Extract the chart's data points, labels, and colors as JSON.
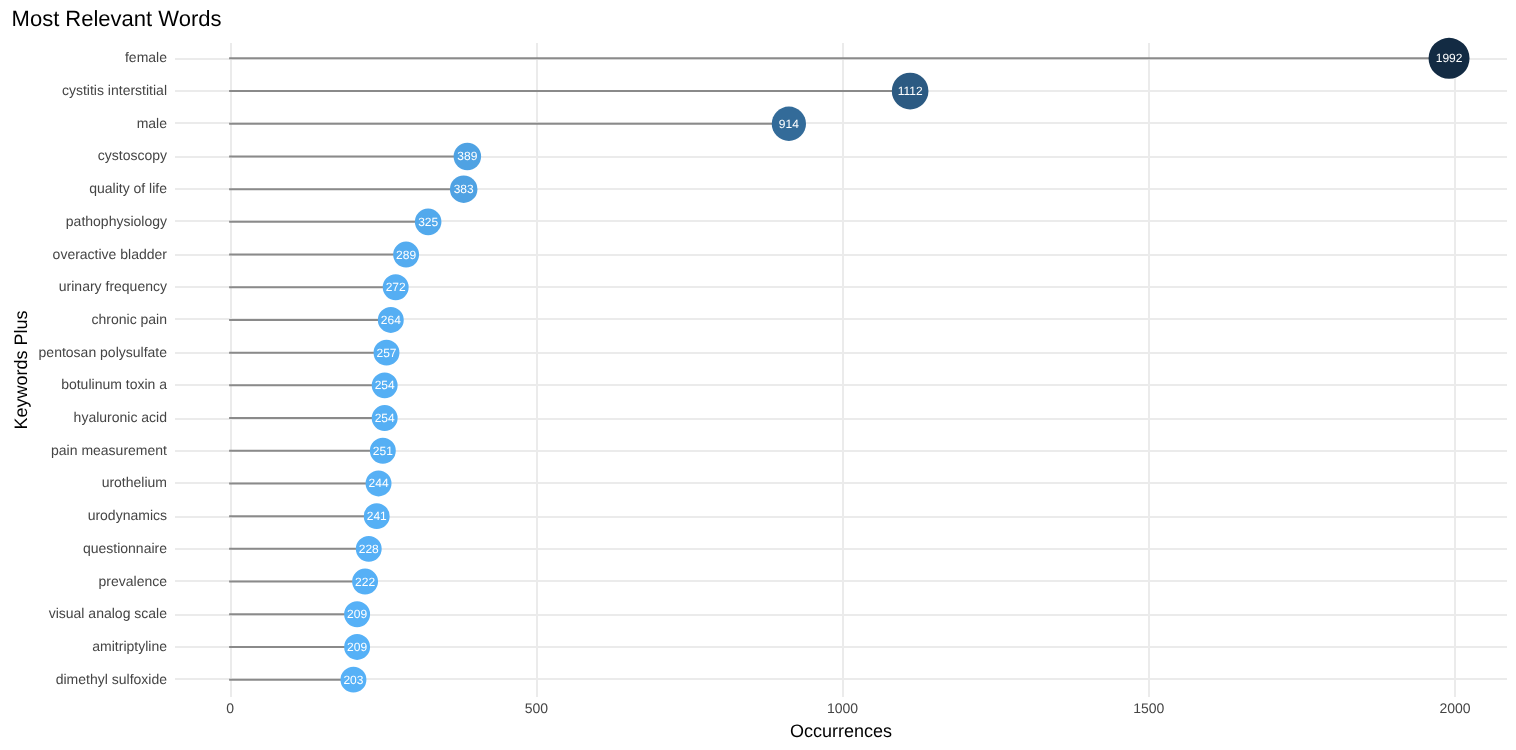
{
  "chart_data": {
    "type": "lollipop",
    "title": "Most Relevant Words",
    "xlabel": "Occurrences",
    "ylabel": "Keywords Plus",
    "orientation": "horizontal",
    "categories": [
      "female",
      "cystitis  interstitial",
      "male",
      "cystoscopy",
      "quality of life",
      "pathophysiology",
      "overactive bladder",
      "urinary frequency",
      "chronic pain",
      "pentosan polysulfate",
      "botulinum toxin a",
      "hyaluronic acid",
      "pain measurement",
      "urothelium",
      "urodynamics",
      "questionnaire",
      "prevalence",
      "visual analog scale",
      "amitriptyline",
      "dimethyl sulfoxide"
    ],
    "values": [
      1992,
      1112,
      914,
      389,
      383,
      325,
      289,
      272,
      264,
      257,
      254,
      254,
      251,
      244,
      241,
      228,
      222,
      209,
      209,
      203
    ],
    "colors": [
      "#132b43",
      "#2c5a82",
      "#336b99",
      "#4fa2e3",
      "#4fa2e3",
      "#52a9ec",
      "#54acf0",
      "#55aef3",
      "#55aef3",
      "#55aff4",
      "#55aff4",
      "#55aff4",
      "#55aff4",
      "#56b0f5",
      "#56b0f5",
      "#56b0f6",
      "#56b0f6",
      "#56b1f7",
      "#56b1f7",
      "#56b1f7"
    ],
    "sizes": [
      1,
      0.8,
      0.7,
      0.45,
      0.45,
      0.42,
      0.4,
      0.4,
      0.4,
      0.4,
      0.4,
      0.4,
      0.4,
      0.4,
      0.4,
      0.4,
      0.4,
      0.4,
      0.4,
      0.4
    ],
    "xlim": [
      -90,
      2085
    ],
    "xticks": [
      0,
      500,
      1000,
      1500,
      2000
    ],
    "grid": true,
    "data_labels": true,
    "marker": "circle"
  }
}
